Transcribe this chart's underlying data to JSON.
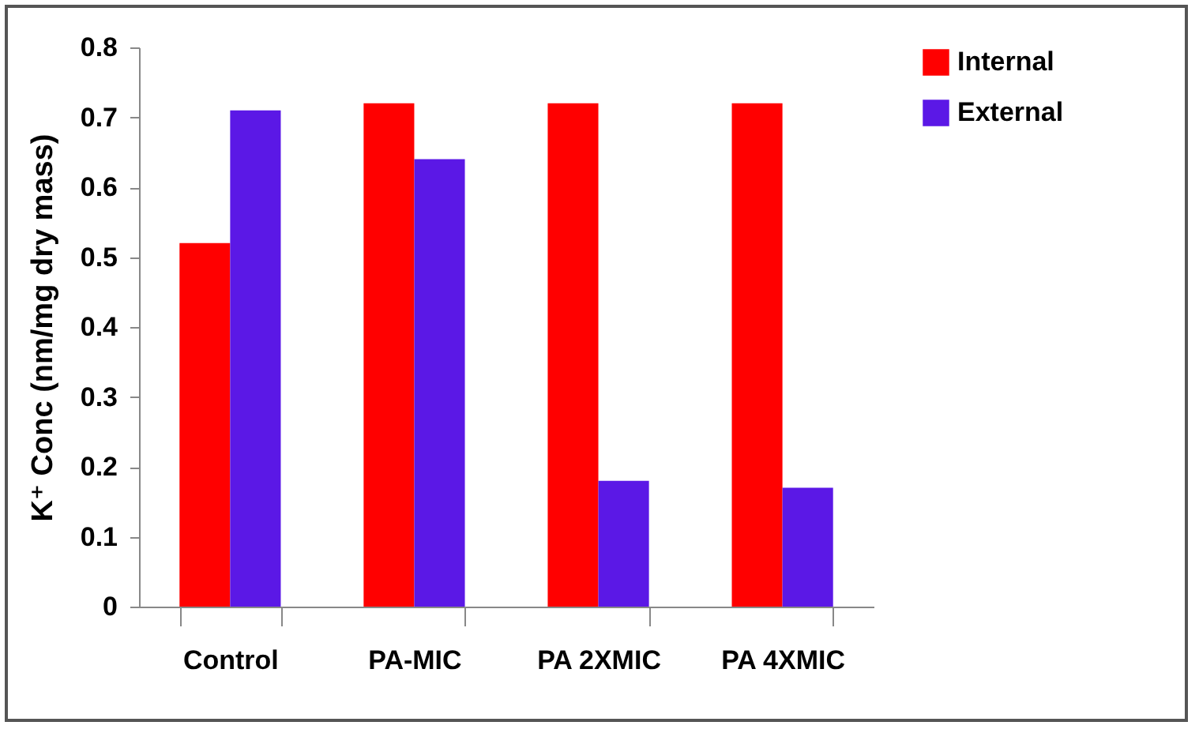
{
  "chart_data": {
    "type": "bar",
    "ylabel": "K⁺ Conc (nm/mg dry mass)",
    "categories": [
      "Control",
      "PA-MIC",
      "PA 2XMIC",
      "PA 4XMIC"
    ],
    "series": [
      {
        "name": "Internal",
        "color": "#ff0000",
        "values": [
          0.52,
          0.72,
          0.72,
          0.72
        ]
      },
      {
        "name": "External",
        "color": "#5b18e6",
        "values": [
          0.71,
          0.64,
          0.18,
          0.17
        ]
      }
    ],
    "ylim": [
      0,
      0.8
    ],
    "yticks": [
      0,
      0.1,
      0.2,
      0.3,
      0.4,
      0.5,
      0.6,
      0.7,
      0.8
    ],
    "grid": false,
    "legend": "right"
  }
}
